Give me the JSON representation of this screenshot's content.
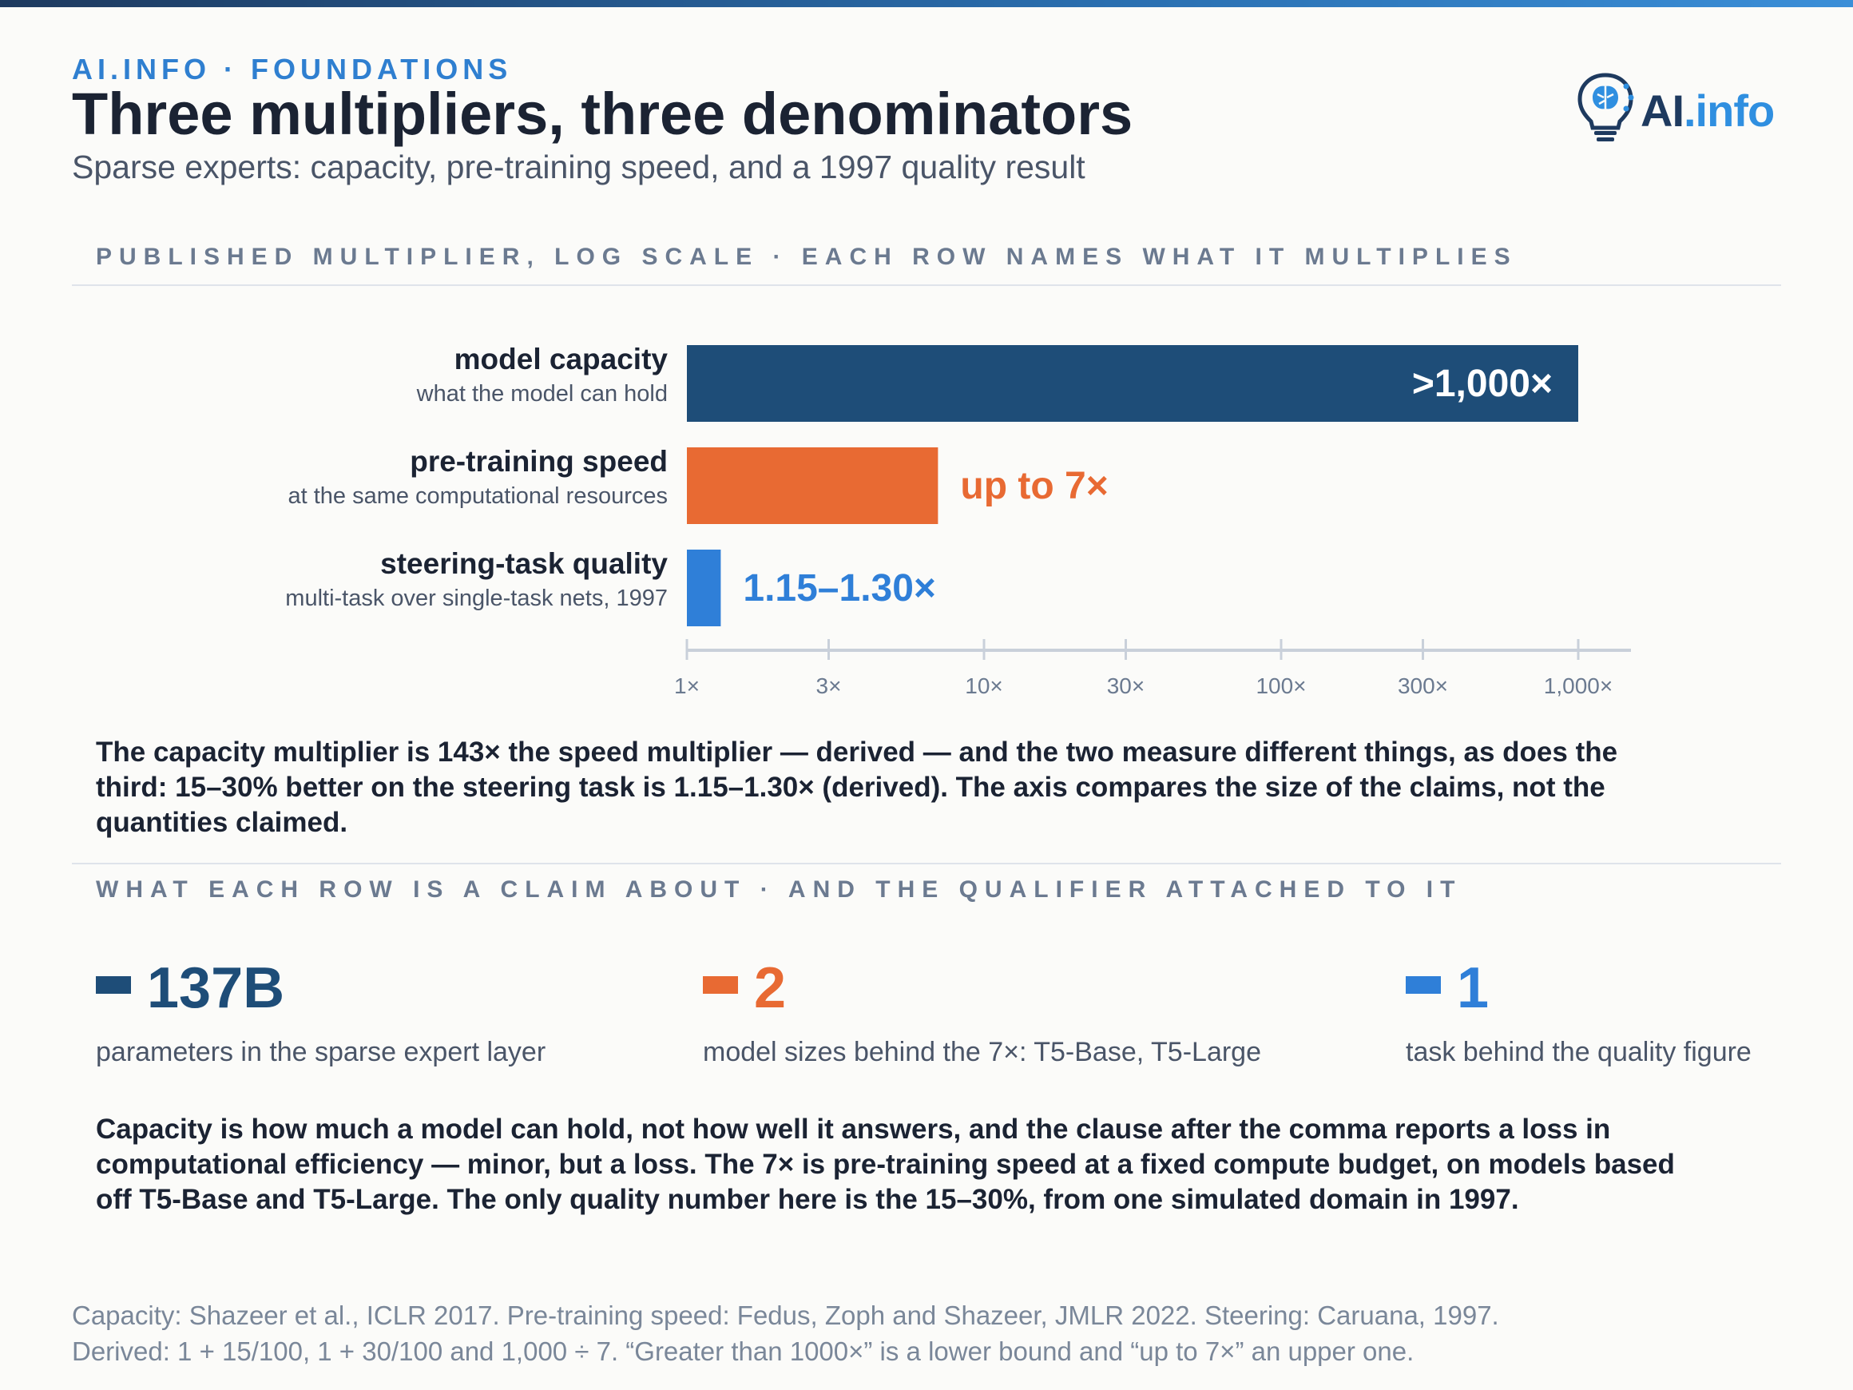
{
  "header": {
    "kicker": "AI.INFO · FOUNDATIONS",
    "title": "Three multipliers, three denominators",
    "subtitle": "Sparse experts: capacity, pre-training speed, and a 1997 quality result",
    "logo_text_main": "AI",
    "logo_text_dot": ".info"
  },
  "colors": {
    "navy": "#1e4d78",
    "orange": "#e86a33",
    "blue": "#2f7fd8",
    "axis": "#c9d0da",
    "tick_label": "#6b7a90"
  },
  "chart_section_label": "PUBLISHED MULTIPLIER, LOG SCALE · EACH ROW NAMES WHAT IT MULTIPLIES",
  "chart_data": {
    "type": "bar",
    "orientation": "horizontal",
    "scale": "log",
    "xlim": [
      1,
      2000
    ],
    "categories": [
      "model capacity",
      "pre-training speed",
      "steering-task quality"
    ],
    "category_notes": [
      "what the model can hold",
      "at the same computational resources",
      "multi-task over single-task nets, 1997"
    ],
    "values": [
      1000,
      7,
      1.3
    ],
    "value_labels": [
      ">1,000×",
      "up to 7×",
      "1.15–1.30×"
    ],
    "ticks": [
      1,
      3,
      10,
      30,
      100,
      300,
      1000
    ],
    "tick_labels": [
      "1×",
      "3×",
      "10×",
      "30×",
      "100×",
      "300×",
      "1,000×"
    ],
    "grid": false,
    "legend": "none"
  },
  "chart_note": "The capacity multiplier is 143× the speed multiplier — derived — and the two measure different things, as does the third: 15–30% better on the steering task is 1.15–1.30× (derived). The axis compares the size of the claims, not the quantities claimed.",
  "claims_section_label": "WHAT EACH ROW IS A CLAIM ABOUT · AND THE QUALIFIER ATTACHED TO IT",
  "stats": [
    {
      "value": "137B",
      "label": "parameters in the sparse expert layer"
    },
    {
      "value": "2",
      "label": "model sizes behind the 7×: T5-Base, T5-Large"
    },
    {
      "value": "1",
      "label": "task behind the quality figure"
    }
  ],
  "summary": "Capacity is how much a model can hold, not how well it answers, and the clause after the comma reports a loss in computational efficiency — minor, but a loss. The 7× is pre-training speed at a fixed compute budget, on models based off T5-Base and T5-Large. The only quality number here is the 15–30%, from one simulated domain in 1997.",
  "footer": {
    "line1": "Capacity: Shazeer et al., ICLR 2017. Pre-training speed: Fedus, Zoph and Shazeer, JMLR 2022. Steering: Caruana, 1997.",
    "line2": "Derived: 1 + 15/100, 1 + 30/100 and 1,000 ÷ 7. “Greater than 1000×” is a lower bound and “up to 7×” an upper one."
  }
}
